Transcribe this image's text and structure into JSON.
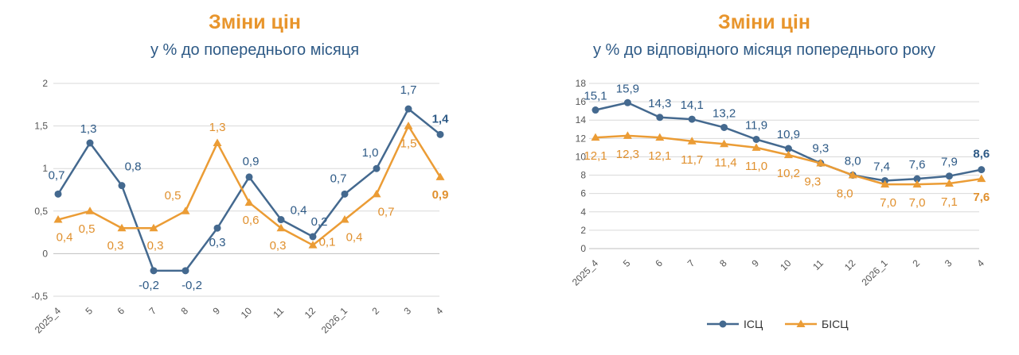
{
  "colors": {
    "isc": "#44698f",
    "bisc": "#eb9c35",
    "label_isc": "#2e5a86",
    "label_bisc": "#e0902e",
    "grid": "#d9d9d9"
  },
  "chart_data": [
    {
      "type": "line",
      "title": "Зміни цін",
      "subtitle": "у % до попереднього місяця",
      "categories": [
        "2025_4",
        "5",
        "6",
        "7",
        "8",
        "9",
        "10",
        "11",
        "12",
        "2026_1",
        "2",
        "3",
        "4"
      ],
      "yticks": [
        "-0,5",
        "0",
        "0,5",
        "1",
        "1,5",
        "2"
      ],
      "ylim": [
        -0.5,
        2
      ],
      "grid": "horizontal",
      "legend": "none",
      "series": [
        {
          "name": "ІСЦ",
          "marker": "circle",
          "values": [
            0.7,
            1.3,
            0.8,
            -0.2,
            -0.2,
            0.3,
            0.9,
            0.4,
            0.2,
            0.7,
            1.0,
            1.7,
            1.4
          ],
          "labels": [
            "0,7",
            "1,3",
            "0,8",
            "-0,2",
            "-0,2",
            "0,3",
            "0,9",
            "0,4",
            "0,2",
            "0,7",
            "1,0",
            "1,7",
            "1,4"
          ]
        },
        {
          "name": "БІСЦ",
          "marker": "triangle",
          "values": [
            0.4,
            0.5,
            0.3,
            0.3,
            0.5,
            1.3,
            0.6,
            0.3,
            0.1,
            0.4,
            0.7,
            1.5,
            0.9
          ],
          "labels": [
            "0,4",
            "0,5",
            "0,3",
            "0,3",
            "0,5",
            "1,3",
            "0,6",
            "0,3",
            "0,1",
            "0,4",
            "0,7",
            "1,5",
            "0,9"
          ]
        }
      ]
    },
    {
      "type": "line",
      "title": "Зміни цін",
      "subtitle": "у % до відповідного місяця попереднього року",
      "categories": [
        "2025_4",
        "5",
        "6",
        "7",
        "8",
        "9",
        "10",
        "11",
        "12",
        "2026_1",
        "2",
        "3",
        "4"
      ],
      "yticks": [
        "0",
        "2",
        "4",
        "6",
        "8",
        "10",
        "12",
        "14",
        "16",
        "18"
      ],
      "ylim": [
        0,
        18
      ],
      "grid": "horizontal",
      "legend": "bottom",
      "series": [
        {
          "name": "ІСЦ",
          "marker": "circle",
          "values": [
            15.1,
            15.9,
            14.3,
            14.1,
            13.2,
            11.9,
            10.9,
            9.3,
            8.0,
            7.4,
            7.6,
            7.9,
            8.6
          ],
          "labels": [
            "15,1",
            "15,9",
            "14,3",
            "14,1",
            "13,2",
            "11,9",
            "10,9",
            "9,3",
            "8,0",
            "7,4",
            "7,6",
            "7,9",
            "8,6"
          ]
        },
        {
          "name": "БІСЦ",
          "marker": "triangle",
          "values": [
            12.1,
            12.3,
            12.1,
            11.7,
            11.4,
            11.0,
            10.2,
            9.3,
            8.0,
            7.0,
            7.0,
            7.1,
            7.6
          ],
          "labels": [
            "12,1",
            "12,3",
            "12,1",
            "11,7",
            "11,4",
            "11,0",
            "10,2",
            "9,3",
            "8,0",
            "7,0",
            "7,0",
            "7,1",
            "7,6"
          ]
        }
      ]
    }
  ]
}
